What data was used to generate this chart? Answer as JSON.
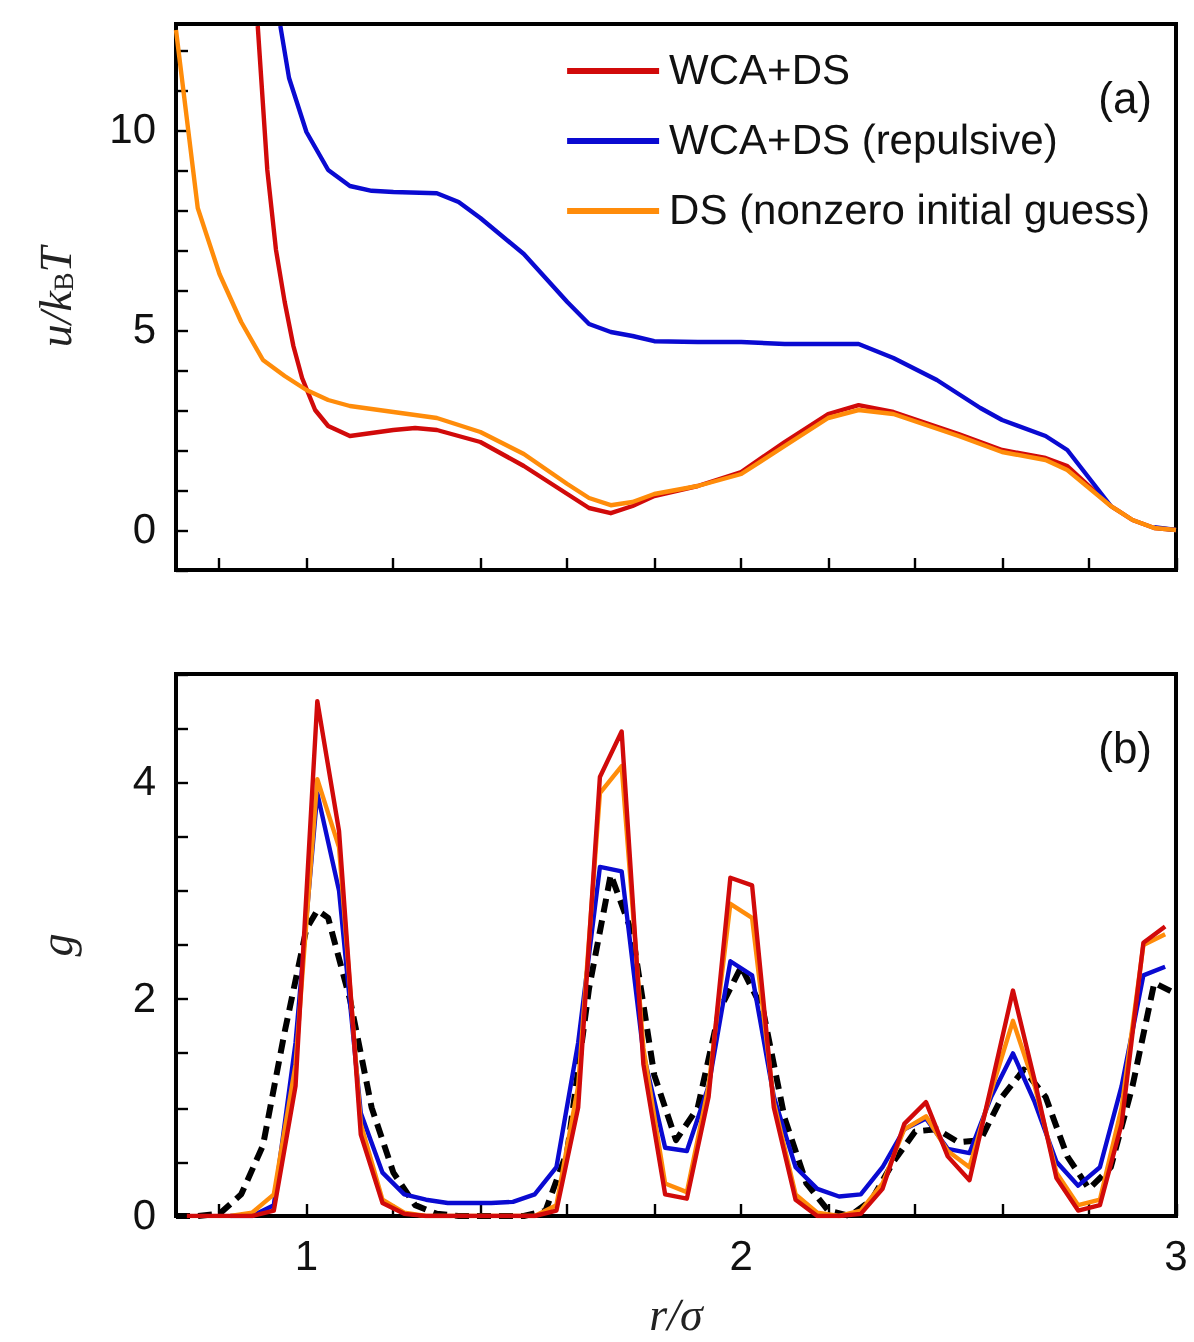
{
  "chart_data": [
    {
      "type": "line",
      "ylabel": "u/k$_{B}$T",
      "annotations": [
        "(a)"
      ],
      "legend": "top right",
      "tick_labels": "y",
      "xlim": [
        0.7,
        3
      ],
      "ylim": [
        -1,
        12.65
      ],
      "xticks": [
        {
          "value": 0.8,
          "label": null
        },
        {
          "value": 1,
          "label": null
        },
        {
          "value": 1.2,
          "label": null
        },
        {
          "value": 1.4,
          "label": null
        },
        {
          "value": 1.6,
          "label": null
        },
        {
          "value": 1.8,
          "label": null
        },
        {
          "value": 2,
          "label": null
        },
        {
          "value": 2.2,
          "label": null
        },
        {
          "value": 2.4,
          "label": null
        },
        {
          "value": 2.6,
          "label": null
        },
        {
          "value": 2.8,
          "label": null
        },
        {
          "value": 3,
          "label": null
        }
      ],
      "yticks": [
        {
          "value": -1,
          "label": null
        },
        0,
        {
          "value": 1,
          "label": null
        },
        {
          "value": 2,
          "label": null
        },
        {
          "value": 3,
          "label": null
        },
        {
          "value": 4,
          "label": null
        },
        5,
        {
          "value": 6,
          "label": null
        },
        {
          "value": 7,
          "label": null
        },
        {
          "value": 8,
          "label": null
        },
        {
          "value": 9,
          "label": null
        },
        10,
        {
          "value": 11,
          "label": null
        },
        {
          "value": 12,
          "label": null
        }
      ],
      "series": [
        {
          "name": "WCA+DS",
          "color": "#d10a0a",
          "x": [
            0.888,
            0.91,
            0.93,
            0.95,
            0.97,
            0.99,
            1.02,
            1.05,
            1.1,
            1.2,
            1.25,
            1.3,
            1.4,
            1.5,
            1.6,
            1.65,
            1.7,
            1.75,
            1.8,
            1.9,
            2.0,
            2.1,
            2.2,
            2.27,
            2.35,
            2.5,
            2.6,
            2.7,
            2.75,
            2.8,
            2.85,
            2.9,
            2.95,
            3.0
          ],
          "values": [
            12.6,
            9.0,
            7.0,
            5.7,
            4.6,
            3.8,
            3.0,
            2.6,
            2.35,
            2.5,
            2.55,
            2.5,
            2.2,
            1.6,
            0.9,
            0.55,
            0.42,
            0.6,
            0.85,
            1.1,
            1.45,
            2.2,
            2.9,
            3.12,
            2.95,
            2.4,
            2.0,
            1.8,
            1.6,
            1.1,
            0.6,
            0.25,
            0.05,
            0.0
          ]
        },
        {
          "name": "WCA+DS (repulsive)",
          "color": "#0a0ad1",
          "x": [
            0.94,
            0.96,
            1.0,
            1.05,
            1.1,
            1.15,
            1.2,
            1.3,
            1.35,
            1.4,
            1.5,
            1.6,
            1.65,
            1.7,
            1.75,
            1.8,
            1.9,
            2.0,
            2.1,
            2.27,
            2.35,
            2.45,
            2.55,
            2.6,
            2.7,
            2.75,
            2.8,
            2.85,
            2.9,
            2.95,
            3.0
          ],
          "values": [
            12.6,
            11.3,
            9.95,
            9.0,
            8.6,
            8.48,
            8.45,
            8.42,
            8.2,
            7.8,
            6.9,
            5.7,
            5.15,
            4.95,
            4.85,
            4.72,
            4.7,
            4.7,
            4.65,
            4.65,
            4.3,
            3.75,
            3.05,
            2.75,
            2.35,
            2.0,
            1.3,
            0.6,
            null,
            0.07,
            0.0
          ]
        },
        {
          "name": "DS (nonzero initial guess)",
          "color": "#ff8c0a",
          "x": [
            0.7,
            0.75,
            0.8,
            0.85,
            0.9,
            0.95,
            1.0,
            1.05,
            1.1,
            1.2,
            1.3,
            1.4,
            1.5,
            1.6,
            1.65,
            1.7,
            1.75,
            1.8,
            1.9,
            2.0,
            2.1,
            2.2,
            2.27,
            2.35,
            2.5,
            2.6,
            2.7,
            2.75,
            2.8,
            2.85,
            2.9,
            2.95,
            3.0
          ],
          "values": [
            12.5,
            8.05,
            6.4,
            5.2,
            4.25,
            3.85,
            3.5,
            3.25,
            3.1,
            2.95,
            2.8,
            2.45,
            1.9,
            1.15,
            0.8,
            0.62,
            0.7,
            0.9,
            1.1,
            1.4,
            2.1,
            2.8,
            3.0,
            2.9,
            2.35,
            1.95,
            1.75,
            1.5,
            1.05,
            0.6,
            0.25,
            0.05,
            0.0
          ]
        }
      ]
    },
    {
      "type": "line",
      "xlabel": "r/σ",
      "ylabel": "g",
      "annotations": [
        "(b)"
      ],
      "xlim": [
        0.7,
        3
      ],
      "ylim": [
        0,
        5
      ],
      "xticks": [
        {
          "value": 0.8,
          "label": null
        },
        1,
        {
          "value": 1.2,
          "label": null
        },
        {
          "value": 1.4,
          "label": null
        },
        {
          "value": 1.6,
          "label": null
        },
        {
          "value": 1.8,
          "label": null
        },
        2,
        {
          "value": 2.2,
          "label": null
        },
        {
          "value": 2.4,
          "label": null
        },
        {
          "value": 2.6,
          "label": null
        },
        {
          "value": 2.8,
          "label": null
        },
        3
      ],
      "yticks": [
        0,
        {
          "value": 0.5,
          "label": null
        },
        {
          "value": 1,
          "label": null
        },
        {
          "value": 1.5,
          "label": null
        },
        2,
        {
          "value": 2.5,
          "label": null
        },
        {
          "value": 3,
          "label": null
        },
        {
          "value": 3.5,
          "label": null
        },
        4,
        {
          "value": 4.5,
          "label": null
        },
        {
          "value": 5,
          "label": null
        }
      ],
      "series": [
        {
          "color": "#000000",
          "line_style": "dashed",
          "x": [
            0.7,
            0.75,
            0.8,
            0.85,
            0.9,
            0.95,
            1.0,
            1.025,
            1.05,
            1.1,
            1.15,
            1.2,
            1.25,
            1.3,
            1.35,
            1.5,
            1.55,
            1.6,
            1.65,
            1.7,
            1.75,
            1.8,
            1.85,
            1.9,
            1.95,
            2.0,
            2.05,
            2.1,
            2.15,
            2.2,
            2.25,
            2.3,
            2.35,
            2.4,
            2.45,
            2.5,
            2.55,
            2.6,
            2.65,
            2.7,
            2.75,
            2.8,
            2.85,
            2.9,
            2.95,
            3.0
          ],
          "values": [
            0,
            0,
            0.02,
            0.2,
            0.65,
            1.7,
            2.65,
            2.82,
            2.75,
            2.0,
            1.0,
            0.4,
            0.1,
            0.02,
            0,
            0,
            0.05,
            0.6,
            2.1,
            3.15,
            2.6,
            1.3,
            0.7,
            1.0,
            1.9,
            2.3,
            1.9,
            0.9,
            0.3,
            0.05,
            0.0,
            0.15,
            0.5,
            0.78,
            0.8,
            0.68,
            0.7,
            1.1,
            1.35,
            1.1,
            0.55,
            0.25,
            0.45,
            1.2,
            2.15,
            2.05
          ]
        },
        {
          "color": "#0a0ad1",
          "x": [
            0.825,
            0.875,
            0.925,
            0.975,
            1.025,
            1.075,
            1.125,
            1.175,
            1.225,
            1.275,
            1.325,
            1.375,
            1.425,
            1.475,
            1.525,
            1.575,
            1.625,
            1.675,
            1.725,
            1.775,
            1.825,
            1.875,
            1.925,
            1.975,
            2.025,
            2.075,
            2.125,
            2.175,
            2.225,
            2.275,
            2.325,
            2.375,
            2.425,
            2.475,
            2.525,
            2.575,
            2.625,
            2.675,
            2.725,
            2.775,
            2.825,
            2.875,
            2.925,
            2.975
          ],
          "values": [
            0,
            0,
            0.1,
            1.6,
            3.9,
            3.0,
            0.95,
            0.4,
            0.2,
            0.15,
            0.12,
            0.12,
            0.12,
            0.13,
            0.2,
            0.45,
            1.6,
            3.22,
            3.18,
            1.5,
            0.63,
            0.6,
            1.2,
            2.35,
            2.22,
            1.1,
            0.45,
            0.25,
            0.18,
            0.2,
            0.45,
            0.8,
            0.9,
            0.62,
            0.58,
            1.1,
            1.5,
            1.05,
            0.5,
            0.28,
            0.45,
            1.2,
            2.22,
            2.3
          ]
        },
        {
          "color": "#ff8c0a",
          "x": [
            0.825,
            0.875,
            0.925,
            0.975,
            1.025,
            1.075,
            1.125,
            1.175,
            1.225,
            1.275,
            1.325,
            1.375,
            1.425,
            1.475,
            1.525,
            1.575,
            1.625,
            1.675,
            1.725,
            1.775,
            1.825,
            1.875,
            1.925,
            1.975,
            2.025,
            2.075,
            2.125,
            2.175,
            2.225,
            2.275,
            2.325,
            2.375,
            2.425,
            2.475,
            2.525,
            2.575,
            2.625,
            2.675,
            2.725,
            2.775,
            2.825,
            2.875,
            2.925,
            2.975
          ],
          "values": [
            0,
            0.03,
            0.2,
            1.4,
            4.03,
            3.4,
            0.85,
            0.15,
            0.03,
            0,
            0,
            0,
            0,
            0,
            0,
            0.1,
            1.2,
            3.9,
            4.15,
            1.55,
            0.3,
            0.22,
            1.2,
            2.88,
            2.75,
            1.05,
            0.2,
            0.03,
            0.0,
            0.05,
            0.3,
            0.8,
            0.92,
            0.6,
            0.45,
            1.15,
            1.8,
            1.2,
            0.4,
            0.1,
            0.15,
            1.0,
            2.5,
            2.6
          ]
        },
        {
          "color": "#d10a0a",
          "x": [
            0.725,
            0.775,
            0.825,
            0.875,
            0.925,
            0.975,
            1.025,
            1.075,
            1.125,
            1.175,
            1.225,
            1.275,
            1.325,
            1.375,
            1.425,
            1.475,
            1.525,
            1.575,
            1.625,
            1.675,
            1.725,
            1.775,
            1.825,
            1.875,
            1.925,
            1.975,
            2.025,
            2.075,
            2.125,
            2.175,
            2.225,
            2.275,
            2.325,
            2.375,
            2.425,
            2.475,
            2.525,
            2.575,
            2.625,
            2.675,
            2.725,
            2.775,
            2.825,
            2.875,
            2.925,
            2.975
          ],
          "values": [
            0,
            0,
            0,
            0,
            0.05,
            1.2,
            4.75,
            3.55,
            0.75,
            0.12,
            0.02,
            0,
            0,
            0,
            0,
            0,
            0,
            0.05,
            1.0,
            4.05,
            4.47,
            1.4,
            0.2,
            0.16,
            1.1,
            3.12,
            3.05,
            1.0,
            0.15,
            0.0,
            0,
            0.02,
            0.25,
            0.85,
            1.05,
            0.55,
            0.33,
            1.2,
            2.08,
            1.25,
            0.35,
            0.05,
            0.1,
            0.85,
            2.52,
            2.67
          ]
        }
      ]
    }
  ]
}
